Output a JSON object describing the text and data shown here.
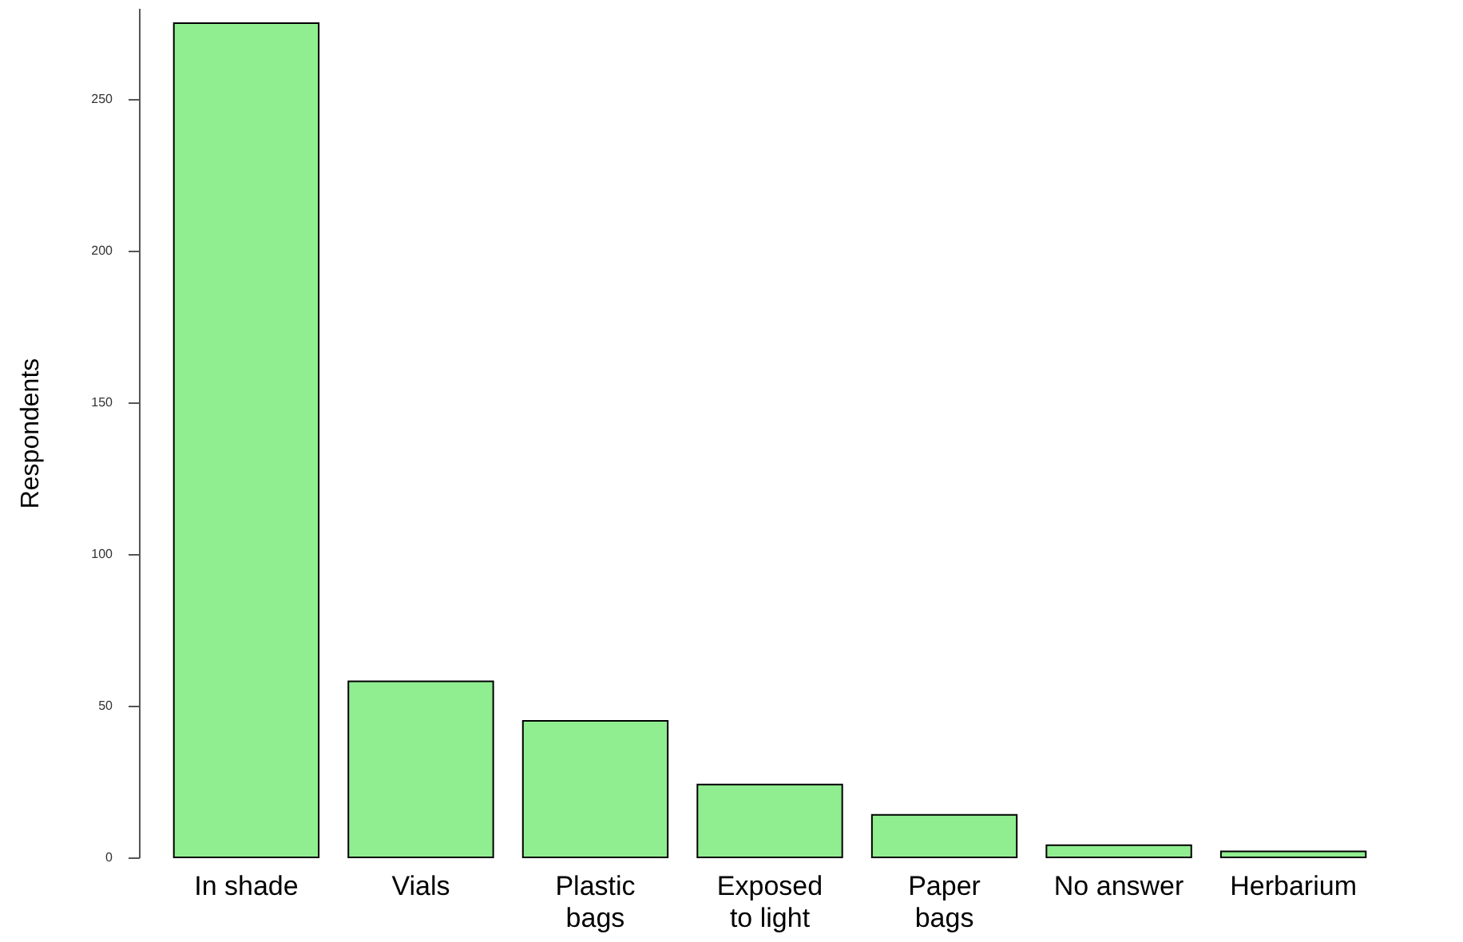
{
  "chart_data": {
    "type": "bar",
    "ylabel": "Respondents",
    "categories": [
      "In shade",
      "Vials",
      "Plastic\nbags",
      "Exposed\nto light",
      "Paper\nbags",
      "No answer",
      "Herbarium"
    ],
    "values": [
      275,
      58,
      45,
      24,
      14,
      4,
      2
    ],
    "color": "#90ee90",
    "ylim": [
      0,
      280
    ],
    "yticks": [
      0,
      50,
      100,
      150,
      200,
      250
    ],
    "grid": false
  }
}
